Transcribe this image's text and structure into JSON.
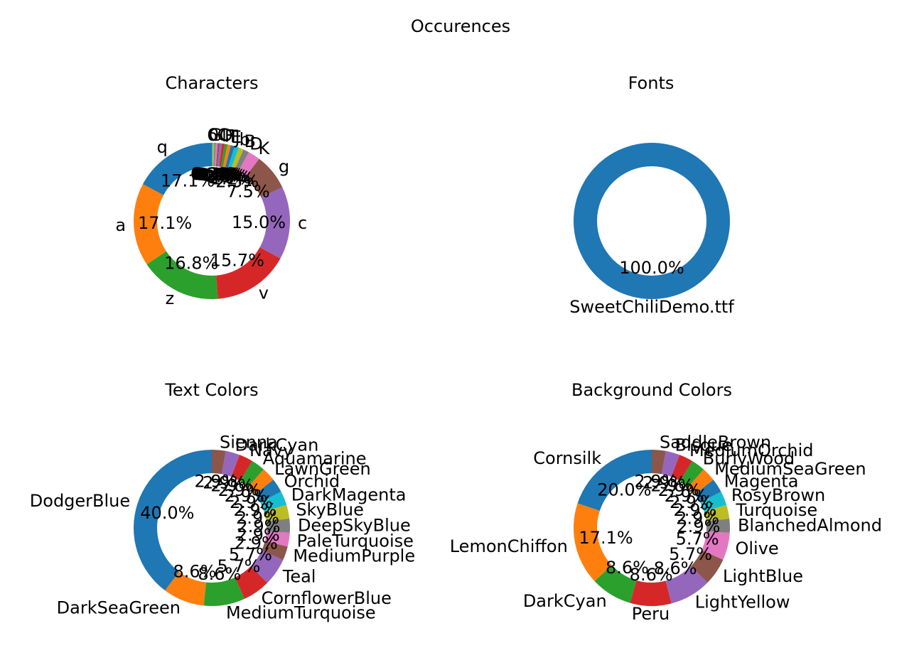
{
  "suptitle": "Occurences",
  "chart_data": [
    {
      "type": "pie",
      "title": "Characters",
      "start_angle_deg": 90,
      "series": [
        {
          "label": "q",
          "value": 17.1,
          "pct_label": "17.1%",
          "color": "#1f77b4"
        },
        {
          "label": "a",
          "value": 17.1,
          "pct_label": "17.1%",
          "color": "#ff7f0e"
        },
        {
          "label": "z",
          "value": 16.8,
          "pct_label": "16.8%",
          "color": "#2ca02c"
        },
        {
          "label": "v",
          "value": 15.7,
          "pct_label": "15.7%",
          "color": "#d62728"
        },
        {
          "label": "c",
          "value": 15.0,
          "pct_label": "15.0%",
          "color": "#9467bd"
        },
        {
          "label": "g",
          "value": 7.5,
          "pct_label": "7.5%",
          "color": "#8c564b"
        },
        {
          "label": "K",
          "value": 2.5,
          "pct_label": "2.5%",
          "color": "#e377c2"
        },
        {
          "label": "D",
          "value": 1.2,
          "pct_label": "1.2%",
          "color": "#7f7f7f"
        },
        {
          "label": "B",
          "value": 1.0,
          "pct_label": "1.0%",
          "color": "#bcbd22"
        },
        {
          "label": "b",
          "value": 0.9,
          "pct_label": "0.9%",
          "color": "#17becf"
        },
        {
          "label": "J",
          "value": 0.8,
          "pct_label": "0.8%",
          "color": "#1f77b4"
        },
        {
          "label": "E",
          "value": 0.7,
          "pct_label": "0.7%",
          "color": "#ff7f0e"
        },
        {
          "label": "T",
          "value": 0.6,
          "pct_label": "0.6%",
          "color": "#2ca02c"
        },
        {
          "label": "F",
          "value": 0.5,
          "pct_label": "0.5%",
          "color": "#d62728"
        },
        {
          "label": "l",
          "value": 0.5,
          "pct_label": "0.5%",
          "color": "#9467bd"
        },
        {
          "label": "O",
          "value": 0.4,
          "pct_label": "0.4%",
          "color": "#8c564b"
        },
        {
          "label": "C",
          "value": 0.4,
          "pct_label": "0.4%",
          "color": "#e377c2"
        },
        {
          "label": "G",
          "value": 0.3,
          "pct_label": "0.3%",
          "color": "#7f7f7f"
        },
        {
          "label": "0",
          "value": 0.3,
          "pct_label": "0.3%",
          "color": "#bcbd22"
        },
        {
          "label": "6",
          "value": 0.2,
          "pct_label": "0.2%",
          "color": "#17becf"
        }
      ]
    },
    {
      "type": "pie",
      "title": "Fonts",
      "start_angle_deg": 90,
      "series": [
        {
          "label": "SweetChiliDemo.ttf",
          "value": 100.0,
          "pct_label": "100.0%",
          "color": "#1f77b4"
        }
      ]
    },
    {
      "type": "pie",
      "title": "Text Colors",
      "start_angle_deg": 90,
      "series": [
        {
          "label": "DodgerBlue",
          "value": 40.0,
          "pct_label": "40.0%",
          "color": "#1f77b4"
        },
        {
          "label": "DarkSeaGreen",
          "value": 8.6,
          "pct_label": "8.6%",
          "color": "#ff7f0e"
        },
        {
          "label": "MediumTurquoise",
          "value": 8.6,
          "pct_label": "8.6%",
          "color": "#2ca02c"
        },
        {
          "label": "CornflowerBlue",
          "value": 5.7,
          "pct_label": "5.7%",
          "color": "#d62728"
        },
        {
          "label": "Teal",
          "value": 5.7,
          "pct_label": "5.7%",
          "color": "#9467bd"
        },
        {
          "label": "MediumPurple",
          "value": 2.9,
          "pct_label": "2.9%",
          "color": "#8c564b"
        },
        {
          "label": "PaleTurquoise",
          "value": 2.9,
          "pct_label": "2.9%",
          "color": "#e377c2"
        },
        {
          "label": "DeepSkyBlue",
          "value": 2.9,
          "pct_label": "2.9%",
          "color": "#7f7f7f"
        },
        {
          "label": "SkyBlue",
          "value": 2.9,
          "pct_label": "2.9%",
          "color": "#bcbd22"
        },
        {
          "label": "DarkMagenta",
          "value": 2.9,
          "pct_label": "2.9%",
          "color": "#17becf"
        },
        {
          "label": "Orchid",
          "value": 2.9,
          "pct_label": "2.9%",
          "color": "#1f77b4"
        },
        {
          "label": "LawnGreen",
          "value": 2.9,
          "pct_label": "2.9%",
          "color": "#ff7f0e"
        },
        {
          "label": "Aquamarine",
          "value": 2.9,
          "pct_label": "2.9%",
          "color": "#2ca02c"
        },
        {
          "label": "Navy",
          "value": 2.9,
          "pct_label": "2.9%",
          "color": "#d62728"
        },
        {
          "label": "DarkCyan",
          "value": 2.9,
          "pct_label": "2.9%",
          "color": "#9467bd"
        },
        {
          "label": "Sienna",
          "value": 2.9,
          "pct_label": "2.9%",
          "color": "#8c564b"
        }
      ]
    },
    {
      "type": "pie",
      "title": "Background Colors",
      "start_angle_deg": 90,
      "series": [
        {
          "label": "Cornsilk",
          "value": 20.0,
          "pct_label": "20.0%",
          "color": "#1f77b4"
        },
        {
          "label": "LemonChiffon",
          "value": 17.1,
          "pct_label": "17.1%",
          "color": "#ff7f0e"
        },
        {
          "label": "DarkCyan",
          "value": 8.6,
          "pct_label": "8.6%",
          "color": "#2ca02c"
        },
        {
          "label": "Peru",
          "value": 8.6,
          "pct_label": "8.6%",
          "color": "#d62728"
        },
        {
          "label": "LightYellow",
          "value": 8.6,
          "pct_label": "8.6%",
          "color": "#9467bd"
        },
        {
          "label": "LightBlue",
          "value": 5.7,
          "pct_label": "5.7%",
          "color": "#8c564b"
        },
        {
          "label": "Olive",
          "value": 5.7,
          "pct_label": "5.7%",
          "color": "#e377c2"
        },
        {
          "label": "BlanchedAlmond",
          "value": 2.9,
          "pct_label": "2.9%",
          "color": "#7f7f7f"
        },
        {
          "label": "Turquoise",
          "value": 2.9,
          "pct_label": "2.9%",
          "color": "#bcbd22"
        },
        {
          "label": "RosyBrown",
          "value": 2.9,
          "pct_label": "2.9%",
          "color": "#17becf"
        },
        {
          "label": "Magenta",
          "value": 2.9,
          "pct_label": "2.9%",
          "color": "#1f77b4"
        },
        {
          "label": "MediumSeaGreen",
          "value": 2.9,
          "pct_label": "2.9%",
          "color": "#ff7f0e"
        },
        {
          "label": "BurlyWood",
          "value": 2.9,
          "pct_label": "2.9%",
          "color": "#2ca02c"
        },
        {
          "label": "MediumOrchid",
          "value": 2.9,
          "pct_label": "2.9%",
          "color": "#d62728"
        },
        {
          "label": "Bisque",
          "value": 2.9,
          "pct_label": "2.9%",
          "color": "#9467bd"
        },
        {
          "label": "SaddleBrown",
          "value": 2.9,
          "pct_label": "2.9%",
          "color": "#8c564b"
        }
      ]
    }
  ]
}
